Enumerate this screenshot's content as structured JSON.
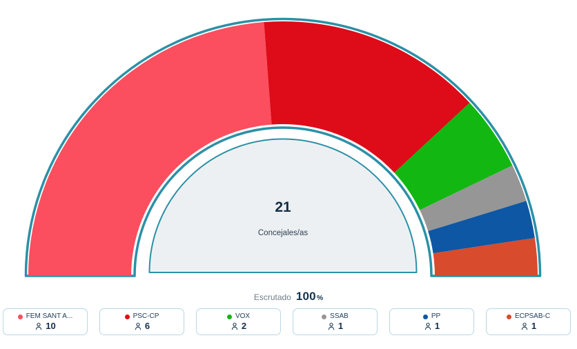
{
  "chart_data": {
    "type": "pie",
    "variant": "hemicycle-donut",
    "title": "",
    "angle_span_deg": 180,
    "legend_position": "bottom",
    "total_seats": 21,
    "center_value": "21",
    "center_label": "Concejales/as",
    "scrutinized_label": "Escrutado",
    "scrutinized_value": "100",
    "scrutinized_unit": "%",
    "series": [
      {
        "name": "FEM SANT A...",
        "seats": 10,
        "color": "#fb4e5e"
      },
      {
        "name": "PSC-CP",
        "seats": 6,
        "color": "#de0b18"
      },
      {
        "name": "VOX",
        "seats": 2,
        "color": "#12b712"
      },
      {
        "name": "SSAB",
        "seats": 1,
        "color": "#969696"
      },
      {
        "name": "PP",
        "seats": 1,
        "color": "#0d57a4"
      },
      {
        "name": "ECPSAB-C",
        "seats": 1,
        "color": "#d84b2d"
      }
    ]
  },
  "theme": {
    "outline_color": "#2b90a6",
    "inner_semicircle_fill": "#edf0f3",
    "card_border_color": "#b8d7e3",
    "text_color": "#1b3a57",
    "muted_text_color": "#6e7e87"
  }
}
